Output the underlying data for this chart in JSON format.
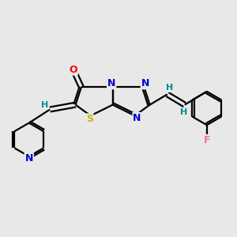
{
  "background_color": "#e8e8e8",
  "bond_color": "#000000",
  "atom_colors": {
    "O": "#ff0000",
    "N": "#0000cd",
    "S": "#c8b400",
    "F": "#ff69b4",
    "H": "#008b8b",
    "C": "#000000"
  },
  "figsize": [
    3.0,
    3.0
  ],
  "dpi": 100
}
